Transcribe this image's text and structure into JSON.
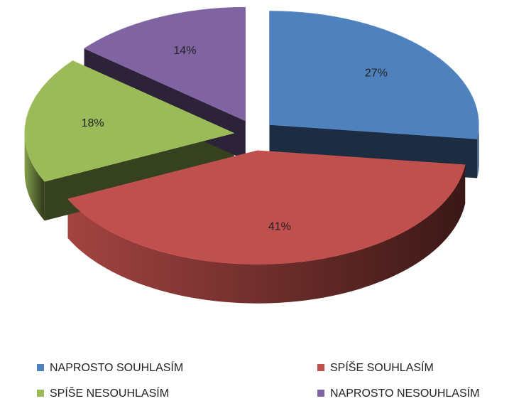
{
  "chart_data": {
    "type": "pie",
    "categories": [
      "NAPROSTO SOUHLASÍM",
      "SPÍŠE SOUHLASÍM",
      "SPÍŠE NESOUHLASÍM",
      "NAPROSTO NESOUHLASÍM"
    ],
    "values": [
      27,
      41,
      18,
      14
    ],
    "value_labels": [
      "27%",
      "41%",
      "18%",
      "14%"
    ],
    "colors": [
      "#4f81bd",
      "#c0504d",
      "#9bbb59",
      "#8064a2"
    ],
    "legend": "bottom"
  }
}
